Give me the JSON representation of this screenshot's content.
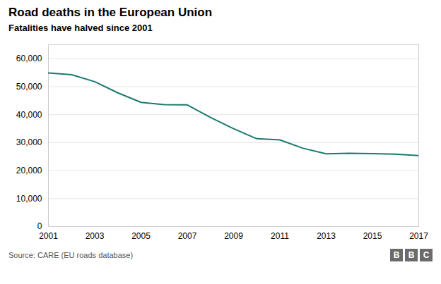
{
  "chart_data": {
    "type": "line",
    "title": "Road deaths in the European Union",
    "subtitle": "Fatalities have halved since 2001",
    "source": "Source: CARE (EU roads database)",
    "annotations": [
      "B",
      "B",
      "C"
    ],
    "x": [
      2001,
      2002,
      2003,
      2004,
      2005,
      2006,
      2007,
      2008,
      2009,
      2010,
      2011,
      2012,
      2013,
      2014,
      2015,
      2016,
      2017
    ],
    "values": [
      54900,
      54300,
      51800,
      47800,
      44400,
      43600,
      43500,
      39000,
      35000,
      31400,
      31000,
      28000,
      26000,
      26200,
      26100,
      25900,
      25400
    ],
    "color": "#1a7a6e",
    "xlim": [
      2001,
      2017
    ],
    "xticks": [
      2001,
      2003,
      2005,
      2007,
      2009,
      2011,
      2013,
      2015,
      2017
    ],
    "ylim": [
      0,
      65000
    ],
    "yticks": [
      0,
      {
        "value": 10000,
        "label": "10,000"
      },
      {
        "value": 20000,
        "label": "20,000"
      },
      {
        "value": 30000,
        "label": "30,000"
      },
      {
        "value": 40000,
        "label": "40,000"
      },
      {
        "value": 50000,
        "label": "50,000"
      },
      {
        "value": 60000,
        "label": "60,000"
      }
    ],
    "grid": true
  }
}
